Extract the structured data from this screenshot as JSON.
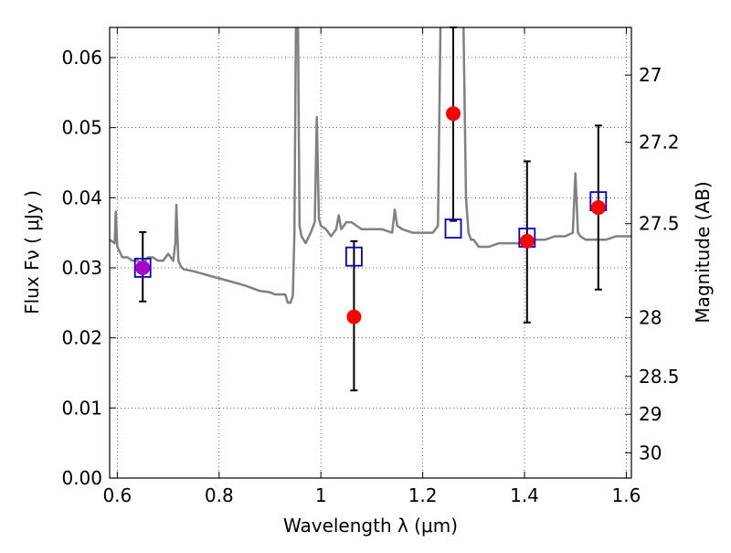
{
  "chart_data": {
    "type": "scatter",
    "xlabel": "Wavelength  λ (μm)",
    "ylabel": "Flux  Fν  ( μJy )",
    "ylabel_right": "Magnitude (AB)",
    "xlim": [
      0.585,
      1.61
    ],
    "ylim": [
      0.0,
      0.0643
    ],
    "grid": true,
    "x_ticks": [
      0.6,
      0.8,
      1.0,
      1.2,
      1.4,
      1.6
    ],
    "x_tick_labels": [
      "0.6",
      "0.8",
      "1",
      "1.2",
      "1.4",
      "1.6"
    ],
    "y_ticks": [
      0.0,
      0.01,
      0.02,
      0.03,
      0.04,
      0.05,
      0.06
    ],
    "y_tick_labels": [
      "0.00",
      "0.01",
      "0.02",
      "0.03",
      "0.04",
      "0.05",
      "0.06"
    ],
    "right_ticks": [
      {
        "label": "27",
        "flux": 0.0575
      },
      {
        "label": "27.2",
        "flux": 0.0479
      },
      {
        "label": "27.5",
        "flux": 0.0363
      },
      {
        "label": "28",
        "flux": 0.0229
      },
      {
        "label": "28.5",
        "flux": 0.0145
      },
      {
        "label": "29",
        "flux": 0.0091
      },
      {
        "label": "30",
        "flux": 0.0036
      }
    ],
    "series": [
      {
        "kind": "model-spectrum",
        "color": "#808080",
        "x": [
          0.585,
          0.595,
          0.597,
          0.6,
          0.61,
          0.62,
          0.63,
          0.64,
          0.65,
          0.66,
          0.67,
          0.68,
          0.69,
          0.7,
          0.71,
          0.714,
          0.716,
          0.72,
          0.725,
          0.73,
          0.75,
          0.8,
          0.85,
          0.88,
          0.9,
          0.91,
          0.93,
          0.935,
          0.94,
          0.945,
          0.948,
          0.951,
          0.953,
          0.955,
          0.958,
          0.962,
          0.97,
          0.98,
          0.988,
          0.992,
          0.996,
          1.0,
          1.01,
          1.02,
          1.03,
          1.035,
          1.04,
          1.05,
          1.06,
          1.07,
          1.08,
          1.09,
          1.1,
          1.12,
          1.14,
          1.145,
          1.15,
          1.16,
          1.18,
          1.2,
          1.22,
          1.23,
          1.235,
          1.24,
          1.245,
          1.26,
          1.27,
          1.275,
          1.28,
          1.285,
          1.29,
          1.295,
          1.3,
          1.31,
          1.33,
          1.35,
          1.38,
          1.4,
          1.42,
          1.44,
          1.46,
          1.48,
          1.495,
          1.5,
          1.505,
          1.51,
          1.52,
          1.54,
          1.56,
          1.58,
          1.6,
          1.61
        ],
        "y": [
          0.034,
          0.0335,
          0.038,
          0.033,
          0.0315,
          0.0315,
          0.031,
          0.031,
          0.0305,
          0.0315,
          0.0315,
          0.031,
          0.031,
          0.032,
          0.031,
          0.0335,
          0.039,
          0.031,
          0.0302,
          0.0298,
          0.0295,
          0.0285,
          0.0275,
          0.0267,
          0.0265,
          0.0262,
          0.0262,
          0.025,
          0.025,
          0.026,
          0.035,
          0.065,
          0.065,
          0.065,
          0.036,
          0.0345,
          0.0335,
          0.035,
          0.0365,
          0.0515,
          0.037,
          0.036,
          0.0355,
          0.0345,
          0.0355,
          0.0375,
          0.0355,
          0.0365,
          0.0365,
          0.036,
          0.0355,
          0.0355,
          0.0355,
          0.0355,
          0.035,
          0.0383,
          0.036,
          0.0355,
          0.035,
          0.035,
          0.035,
          0.036,
          0.065,
          0.065,
          0.065,
          0.065,
          0.065,
          0.065,
          0.065,
          0.04,
          0.035,
          0.034,
          0.034,
          0.033,
          0.033,
          0.0335,
          0.0335,
          0.0335,
          0.034,
          0.034,
          0.0345,
          0.0345,
          0.035,
          0.0435,
          0.035,
          0.0345,
          0.034,
          0.034,
          0.034,
          0.0345,
          0.0345,
          0.0345
        ]
      },
      {
        "kind": "model-photometry",
        "marker": "open-square",
        "color": "#0000cc",
        "x": [
          0.65,
          1.065,
          1.26,
          1.405,
          1.545
        ],
        "y": [
          0.03,
          0.0316,
          0.0356,
          0.0343,
          0.0395
        ]
      },
      {
        "kind": "observed",
        "marker": "filled-circle",
        "color": "#ff0000",
        "x": [
          0.65,
          1.065,
          1.26,
          1.405,
          1.545
        ],
        "y": [
          0.03,
          0.023,
          0.052,
          0.0338,
          0.0386
        ],
        "yerr_low": [
          0.0252,
          0.0125,
          0.0367,
          0.0222,
          0.0269
        ],
        "yerr_high": [
          0.0351,
          0.0338,
          0.0643,
          0.0452,
          0.0503
        ],
        "point_colors": [
          "#aa00cc",
          "#ff0000",
          "#ff0000",
          "#ff0000",
          "#ff0000"
        ]
      }
    ]
  }
}
